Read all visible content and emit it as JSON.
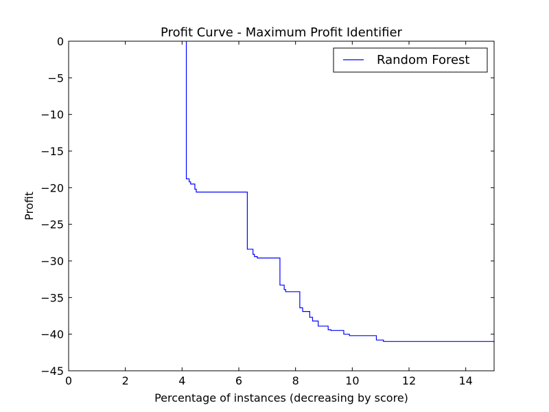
{
  "chart_data": {
    "type": "line",
    "title": "Profit Curve - Maximum Profit Identifier",
    "xlabel": "Percentage of instances (decreasing by score)",
    "ylabel": "Profit",
    "xlim": [
      0,
      15
    ],
    "ylim": [
      -45,
      0
    ],
    "xticks": [
      0,
      2,
      4,
      6,
      8,
      10,
      12,
      14
    ],
    "yticks": [
      0,
      -5,
      -10,
      -15,
      -20,
      -25,
      -30,
      -35,
      -40,
      -45
    ],
    "xtick_labels": [
      "0",
      "2",
      "4",
      "6",
      "8",
      "10",
      "12",
      "14"
    ],
    "ytick_labels": [
      "0",
      "−5",
      "−10",
      "−15",
      "−20",
      "−25",
      "−30",
      "−35",
      "−40",
      "−45"
    ],
    "grid": false,
    "legend_position": "top-right",
    "series": [
      {
        "name": "Random Forest",
        "color": "#0000ff",
        "x": [
          4.15,
          4.15,
          4.25,
          4.25,
          4.3,
          4.3,
          4.45,
          4.45,
          4.5,
          4.5,
          4.6,
          4.6,
          6.3,
          6.3,
          6.5,
          6.5,
          6.55,
          6.55,
          6.65,
          6.65,
          7.45,
          7.45,
          7.6,
          7.6,
          7.65,
          7.65,
          8.15,
          8.15,
          8.25,
          8.25,
          8.5,
          8.5,
          8.6,
          8.6,
          8.8,
          8.8,
          9.15,
          9.15,
          9.25,
          9.25,
          9.7,
          9.7,
          9.9,
          9.9,
          10.85,
          10.85,
          11.1,
          11.1,
          15.0
        ],
        "y": [
          0,
          -18.8,
          -18.8,
          -19.2,
          -19.2,
          -19.5,
          -19.5,
          -20.2,
          -20.2,
          -20.6,
          -20.6,
          -20.6,
          -20.6,
          -28.4,
          -28.4,
          -29.1,
          -29.1,
          -29.4,
          -29.4,
          -29.6,
          -29.6,
          -33.3,
          -33.3,
          -33.9,
          -33.9,
          -34.2,
          -34.2,
          -36.4,
          -36.4,
          -36.9,
          -36.9,
          -37.7,
          -37.7,
          -38.2,
          -38.2,
          -38.9,
          -38.9,
          -39.4,
          -39.4,
          -39.5,
          -39.5,
          -40.0,
          -40.0,
          -40.2,
          -40.2,
          -40.8,
          -40.8,
          -41.0,
          -41.0
        ]
      }
    ]
  }
}
